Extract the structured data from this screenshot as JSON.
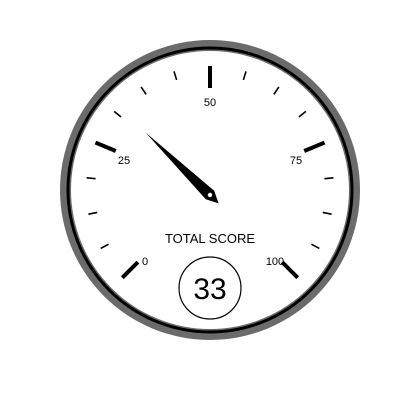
{
  "gauge": {
    "label": "TOTAL SCORE",
    "value": 33,
    "value_text": "33",
    "min": 0,
    "max": 100,
    "major_tick_labels": [
      "0",
      "25",
      "50",
      "75",
      "100"
    ],
    "minor_ticks_per_major": 4,
    "colors": {
      "bezel": "#6b6b6b",
      "bezel_ring": "#000000",
      "face": "#ffffff",
      "needle": "#000000",
      "ticks": "#000000"
    }
  }
}
